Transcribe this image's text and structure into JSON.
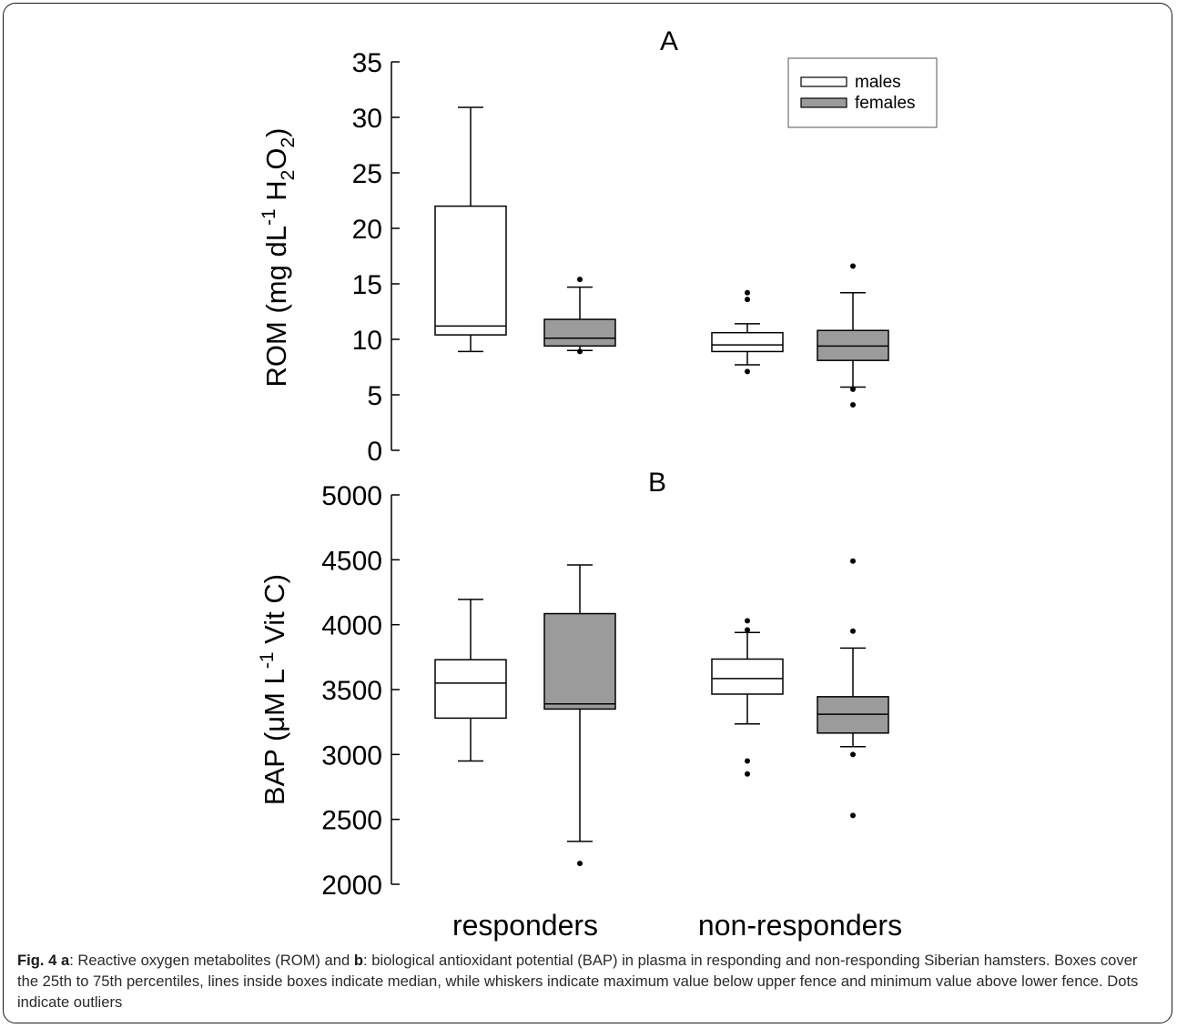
{
  "figure_label": "Fig. 4",
  "caption": {
    "label_a": "a",
    "text_a": ": Reactive oxygen metabolites (ROM) and ",
    "label_b": "b",
    "text_b": ": biological antioxidant potential (BAP) in plasma in responding and non-responding Siberian hamsters. Boxes cover the 25th to 75th percentiles, lines inside boxes indicate median, while whiskers indicate maximum value below upper fence and minimum value above lower fence. Dots indicate outliers"
  },
  "legend": [
    {
      "label": "males",
      "color": "#ffffff"
    },
    {
      "label": "females",
      "color": "#9b9b9b"
    }
  ],
  "groups": [
    "responders",
    "non-responders"
  ],
  "colors": {
    "male_fill": "#ffffff",
    "female_fill": "#9b9b9b",
    "stroke": "#000000"
  },
  "chart_data": [
    {
      "type": "box",
      "panel": "A",
      "ylabel_main": "ROM (mg dL",
      "ylabel_sup1": "-1",
      "ylabel_mid": " H",
      "ylabel_sub1": "2",
      "ylabel_o": "O",
      "ylabel_sub2": "2",
      "ylabel_end": ")",
      "ylim": [
        0,
        35
      ],
      "yticks": [
        0,
        5,
        10,
        15,
        20,
        25,
        30,
        35
      ],
      "legend_position": "top-right",
      "boxes": [
        {
          "group": "responders",
          "sex": "males",
          "whisker_low": 8.9,
          "q1": 10.4,
          "median": 11.2,
          "q3": 22.0,
          "whisker_high": 30.9,
          "outliers": []
        },
        {
          "group": "responders",
          "sex": "females",
          "whisker_low": 9.0,
          "q1": 9.4,
          "median": 10.1,
          "q3": 11.8,
          "whisker_high": 14.7,
          "outliers": [
            15.4,
            8.9
          ]
        },
        {
          "group": "non-responders",
          "sex": "males",
          "whisker_low": 7.7,
          "q1": 8.9,
          "median": 9.5,
          "q3": 10.6,
          "whisker_high": 11.4,
          "outliers": [
            14.2,
            13.6,
            7.1
          ]
        },
        {
          "group": "non-responders",
          "sex": "females",
          "whisker_low": 5.7,
          "q1": 8.1,
          "median": 9.4,
          "q3": 10.8,
          "whisker_high": 14.2,
          "outliers": [
            16.6,
            5.5,
            4.1
          ]
        }
      ]
    },
    {
      "type": "box",
      "panel": "B",
      "ylabel_main": "BAP (μM L",
      "ylabel_sup1": "-1",
      "ylabel_end": " Vit C)",
      "ylim": [
        2000,
        5000
      ],
      "yticks": [
        2000,
        2500,
        3000,
        3500,
        4000,
        4500,
        5000
      ],
      "boxes": [
        {
          "group": "responders",
          "sex": "males",
          "whisker_low": 2950,
          "q1": 3280,
          "median": 3550,
          "q3": 3730,
          "whisker_high": 4195,
          "outliers": []
        },
        {
          "group": "responders",
          "sex": "females",
          "whisker_low": 2330,
          "q1": 3350,
          "median": 3390,
          "q3": 4085,
          "whisker_high": 4460,
          "outliers": [
            2160
          ]
        },
        {
          "group": "non-responders",
          "sex": "males",
          "whisker_low": 3235,
          "q1": 3465,
          "median": 3585,
          "q3": 3735,
          "whisker_high": 3940,
          "outliers": [
            4030,
            3960,
            2950,
            2850
          ]
        },
        {
          "group": "non-responders",
          "sex": "females",
          "whisker_low": 3060,
          "q1": 3165,
          "median": 3310,
          "q3": 3445,
          "whisker_high": 3820,
          "outliers": [
            4490,
            3950,
            3000,
            2530
          ]
        }
      ]
    }
  ]
}
